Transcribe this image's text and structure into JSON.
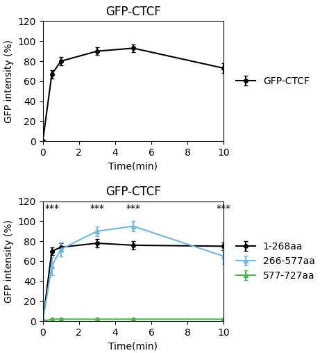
{
  "chart_data": [
    {
      "type": "line",
      "title": "GFP-CTCF",
      "x": [
        0,
        0.5,
        1,
        3,
        5,
        10
      ],
      "series": [
        {
          "name": "GFP-CTCF",
          "color": "#000000",
          "marker": "o",
          "values": [
            0,
            67,
            80,
            90,
            93,
            73
          ],
          "yerr": [
            0,
            4,
            4,
            4,
            4,
            5
          ]
        }
      ],
      "x_label": "Time(min)",
      "y_label": "GFP intensity (%)",
      "xlim": [
        0,
        10
      ],
      "ylim": [
        0,
        120
      ],
      "xticks": [
        0,
        2,
        4,
        6,
        8,
        10
      ],
      "yticks": [
        0,
        20,
        40,
        60,
        80,
        100,
        120
      ],
      "legend": "center left",
      "grid": false
    },
    {
      "type": "line",
      "title": "GFP-CTCF",
      "x": [
        0,
        0.5,
        1,
        3,
        5,
        10
      ],
      "series": [
        {
          "name": "1-268aa",
          "color": "#000000",
          "marker": "o",
          "values": [
            0,
            70,
            74,
            78,
            76,
            75
          ],
          "yerr": [
            0,
            4,
            4,
            4,
            4,
            4
          ]
        },
        {
          "name": "266-577aa",
          "color": "#6bb8e8",
          "marker": "^",
          "values": [
            0,
            55,
            72,
            90,
            95,
            65
          ],
          "yerr": [
            0,
            9,
            7,
            5,
            5,
            8
          ]
        },
        {
          "name": "577-727aa",
          "color": "#44bb44",
          "marker": "^",
          "values": [
            0,
            2,
            2,
            2,
            2,
            2
          ],
          "yerr": [
            0,
            1,
            1,
            1,
            1,
            1
          ]
        }
      ],
      "annotations": [
        {
          "text": "***",
          "x": 0.5,
          "y": 108
        },
        {
          "text": "***",
          "x": 3,
          "y": 108
        },
        {
          "text": "***",
          "x": 5,
          "y": 108
        },
        {
          "text": "***",
          "x": 10,
          "y": 108
        }
      ],
      "x_label": "Time(min)",
      "y_label": "GFP intensity (%)",
      "xlim": [
        0,
        10
      ],
      "ylim": [
        0,
        120
      ],
      "xticks": [
        0,
        2,
        4,
        6,
        8,
        10
      ],
      "yticks": [
        0,
        20,
        40,
        60,
        80,
        100,
        120
      ],
      "legend": "center left",
      "grid": false
    }
  ]
}
